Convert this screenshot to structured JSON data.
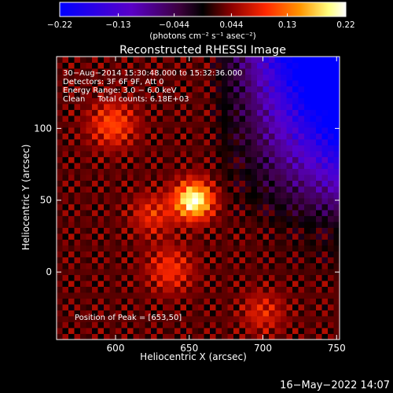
{
  "chart_data": {
    "type": "heatmap",
    "title": "Reconstructed RHESSI Image",
    "xlabel": "Heliocentric X (arcsec)",
    "ylabel": "Heliocentric Y (arcsec)",
    "xlim": [
      560,
      752
    ],
    "ylim": [
      -47,
      150
    ],
    "x_ticks": [
      "600",
      "650",
      "700",
      "750"
    ],
    "y_ticks": [
      "0",
      "50",
      "100"
    ],
    "x_tick_values": [
      600,
      650,
      700,
      750
    ],
    "y_tick_values": [
      0,
      50,
      100
    ],
    "colorbar": {
      "range": [
        -0.22,
        0.22
      ],
      "tick_labels": [
        "−0.22",
        "−0.13",
        "−0.044",
        "0.044",
        "0.13",
        "0.22"
      ],
      "tick_values": [
        -0.22,
        -0.13,
        -0.044,
        0.044,
        0.13,
        0.22
      ],
      "unit_label": "(photons cm⁻² s⁻¹ asec⁻²)",
      "colors": [
        "#0000ff",
        "#5a00c8",
        "#3c003c",
        "#000000",
        "#8c0000",
        "#ff2800",
        "#ff9600",
        "#ffff80",
        "#ffffff"
      ]
    },
    "annotations": {
      "line1": "30−Aug−2014 15:30:48.000 to 15:32:36.000",
      "line2": "Detectors: 3F 6F 9F, Att 0",
      "line3": "Energy Range: 3.0 − 6.0 keV",
      "line4": "Clean     Total counts: 6.18E+03",
      "peak": "Position of Peak = [653,50]"
    },
    "peak": {
      "x": 653,
      "y": 50,
      "value": 0.22
    }
  },
  "footer": {
    "timestamp": "16−May−2022 14:07"
  }
}
